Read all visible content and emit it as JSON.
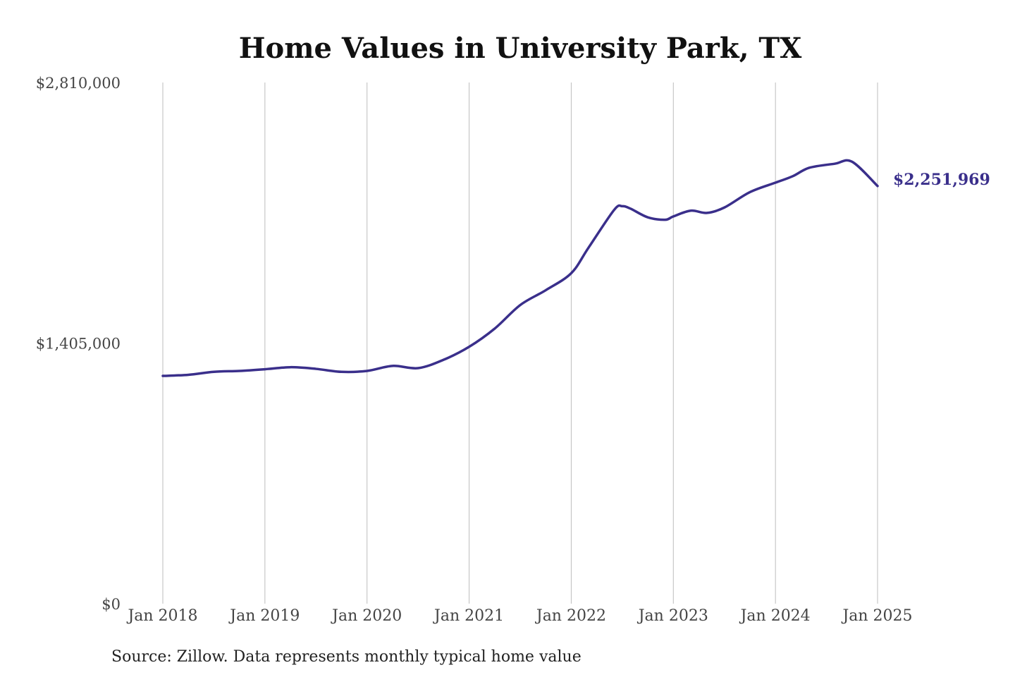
{
  "chart_data": {
    "type": "line",
    "title": "Home Values in University Park, TX",
    "source": "Source: Zillow. Data represents monthly typical home value",
    "xlabel": "",
    "ylabel": "",
    "ylim": [
      0,
      2810000
    ],
    "y_ticks": [
      {
        "value": 2810000,
        "label": "$2,810,000"
      },
      {
        "value": 1405000,
        "label": "$1,405,000"
      },
      {
        "value": 0,
        "label": "$0"
      }
    ],
    "x_range": [
      2018.0,
      2025.0
    ],
    "x_ticks": [
      {
        "value": 2018,
        "label": "Jan 2018"
      },
      {
        "value": 2019,
        "label": "Jan 2019"
      },
      {
        "value": 2020,
        "label": "Jan 2020"
      },
      {
        "value": 2021,
        "label": "Jan 2021"
      },
      {
        "value": 2022,
        "label": "Jan 2022"
      },
      {
        "value": 2023,
        "label": "Jan 2023"
      },
      {
        "value": 2024,
        "label": "Jan 2024"
      },
      {
        "value": 2025,
        "label": "Jan 2025"
      }
    ],
    "grid": {
      "vertical": true,
      "horizontal": false
    },
    "series": [
      {
        "name": "Typical home value",
        "color": "#3a2f8b",
        "x": [
          2018.0,
          2018.25,
          2018.5,
          2018.75,
          2019.0,
          2019.25,
          2019.5,
          2019.75,
          2020.0,
          2020.25,
          2020.5,
          2020.75,
          2021.0,
          2021.25,
          2021.5,
          2021.75,
          2022.0,
          2022.17,
          2022.42,
          2022.5,
          2022.58,
          2022.75,
          2022.92,
          2023.0,
          2023.17,
          2023.33,
          2023.5,
          2023.75,
          2024.0,
          2024.17,
          2024.33,
          2024.58,
          2024.75,
          2025.0
        ],
        "values": [
          1228000,
          1234000,
          1250000,
          1255000,
          1264000,
          1275000,
          1266000,
          1250000,
          1255000,
          1282000,
          1270000,
          1315000,
          1385000,
          1483000,
          1610000,
          1690000,
          1782000,
          1920000,
          2123000,
          2143000,
          2130000,
          2083000,
          2070000,
          2088000,
          2119000,
          2107000,
          2136000,
          2219000,
          2270000,
          2305000,
          2350000,
          2372000,
          2383000,
          2251969
        ]
      }
    ],
    "end_label": {
      "value": 2251969,
      "label": "$2,251,969",
      "color": "#3a2f8b"
    }
  }
}
